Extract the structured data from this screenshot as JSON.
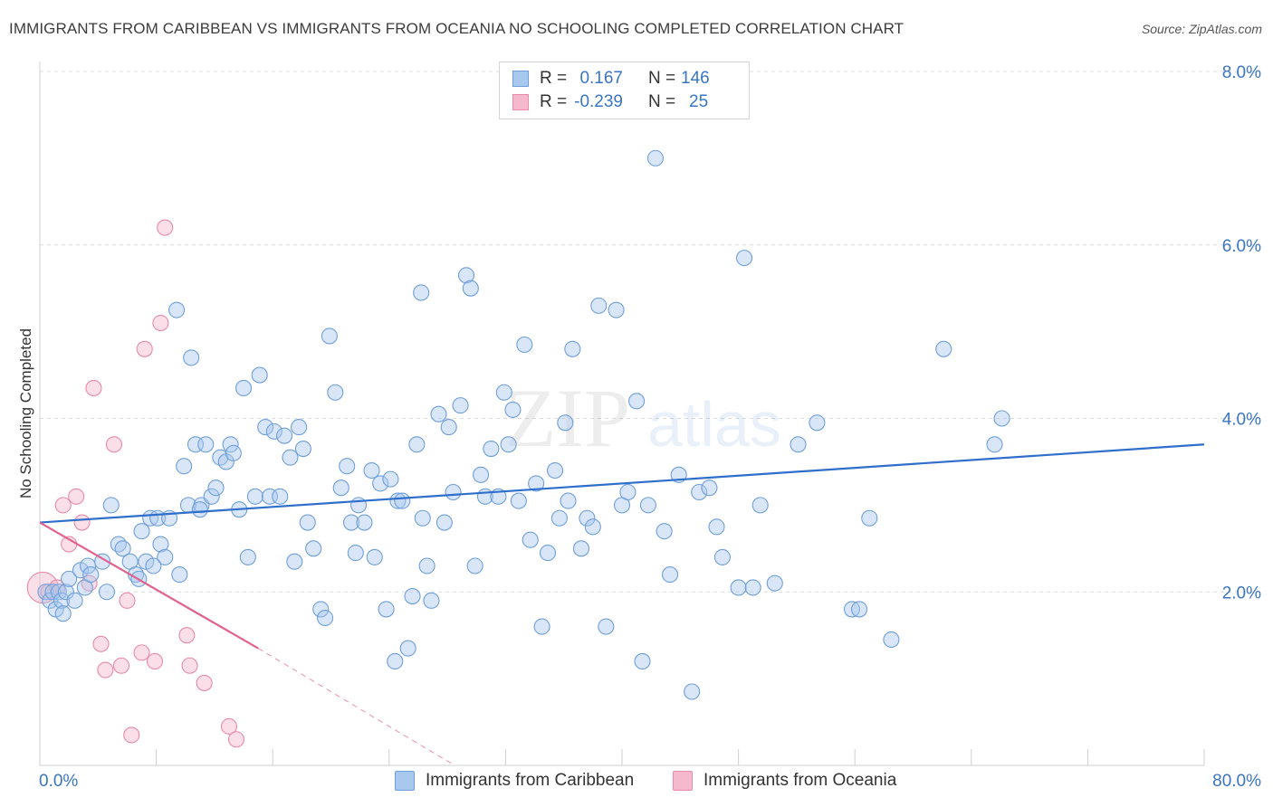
{
  "title": "IMMIGRANTS FROM CARIBBEAN VS IMMIGRANTS FROM OCEANIA NO SCHOOLING COMPLETED CORRELATION CHART",
  "source": "Source: ZipAtlas.com",
  "watermark": {
    "zip": "ZIP",
    "atlas": "atlas"
  },
  "legend": {
    "rows": [
      {
        "r_label": "R =",
        "r_value": "0.167",
        "n_label": "N =",
        "n_value": "146"
      },
      {
        "r_label": "R =",
        "r_value": "-0.239",
        "n_label": "N =",
        "n_value": "25"
      }
    ]
  },
  "bottom_legend": {
    "caribbean": "Immigrants from Caribbean",
    "oceania": "Immigrants from Oceania"
  },
  "colors": {
    "blue_fill": "#a9c8ee",
    "blue_stroke": "#6f9fdb",
    "blue_line": "#2f6fcb",
    "pink_fill": "#f5b8cc",
    "pink_stroke": "#e98aa8",
    "pink_line": "#e0638e",
    "tick_text": "#3a75c4",
    "grid": "#dcdcdc"
  },
  "chart_data": {
    "type": "scatter",
    "ylabel": "No Schooling Completed",
    "xlabel": "",
    "xlim": [
      0,
      80
    ],
    "ylim": [
      0,
      8
    ],
    "x_tick_labels": [
      "0.0%",
      "80.0%"
    ],
    "y_ticks": [
      2,
      4,
      6,
      8
    ],
    "y_tick_labels": [
      "2.0%",
      "4.0%",
      "6.0%",
      "8.0%"
    ],
    "grid": "horizontal dashed",
    "series": [
      {
        "name": "Immigrants from Caribbean",
        "color": "#a9c8ee",
        "trend": {
          "x": [
            0,
            80
          ],
          "y": [
            2.8,
            3.7
          ]
        },
        "points": [
          [
            0.4,
            2.0
          ],
          [
            0.7,
            1.9
          ],
          [
            0.9,
            2.0
          ],
          [
            1.1,
            1.8
          ],
          [
            1.3,
            2.0
          ],
          [
            1.5,
            1.9
          ],
          [
            1.6,
            1.75
          ],
          [
            1.8,
            2.0
          ],
          [
            2.0,
            2.15
          ],
          [
            2.4,
            1.9
          ],
          [
            2.8,
            2.25
          ],
          [
            3.1,
            2.05
          ],
          [
            3.3,
            2.3
          ],
          [
            3.5,
            2.2
          ],
          [
            4.3,
            2.35
          ],
          [
            4.6,
            2.0
          ],
          [
            4.9,
            3.0
          ],
          [
            5.4,
            2.55
          ],
          [
            5.7,
            2.5
          ],
          [
            6.2,
            2.35
          ],
          [
            6.6,
            2.2
          ],
          [
            6.8,
            2.15
          ],
          [
            7.0,
            2.7
          ],
          [
            7.3,
            2.35
          ],
          [
            7.6,
            2.85
          ],
          [
            8.1,
            2.85
          ],
          [
            8.3,
            2.55
          ],
          [
            8.6,
            2.4
          ],
          [
            8.9,
            2.85
          ],
          [
            9.4,
            5.25
          ],
          [
            9.6,
            2.2
          ],
          [
            9.9,
            3.45
          ],
          [
            10.2,
            3.0
          ],
          [
            10.4,
            4.7
          ],
          [
            10.7,
            3.7
          ],
          [
            11.1,
            3.0
          ],
          [
            11.4,
            3.7
          ],
          [
            11.8,
            3.1
          ],
          [
            12.1,
            3.2
          ],
          [
            12.4,
            3.55
          ],
          [
            12.8,
            3.5
          ],
          [
            13.1,
            3.7
          ],
          [
            13.3,
            3.6
          ],
          [
            13.7,
            2.95
          ],
          [
            14.0,
            4.35
          ],
          [
            14.3,
            2.4
          ],
          [
            14.8,
            3.1
          ],
          [
            15.1,
            4.5
          ],
          [
            15.5,
            3.9
          ],
          [
            15.8,
            3.1
          ],
          [
            16.1,
            3.85
          ],
          [
            16.5,
            3.1
          ],
          [
            16.8,
            3.8
          ],
          [
            17.2,
            3.55
          ],
          [
            17.5,
            2.35
          ],
          [
            17.8,
            3.9
          ],
          [
            18.1,
            3.65
          ],
          [
            18.4,
            2.8
          ],
          [
            18.8,
            2.5
          ],
          [
            19.3,
            1.8
          ],
          [
            19.6,
            1.7
          ],
          [
            19.9,
            4.95
          ],
          [
            20.3,
            4.3
          ],
          [
            20.7,
            3.2
          ],
          [
            21.1,
            3.45
          ],
          [
            21.4,
            2.8
          ],
          [
            21.7,
            2.45
          ],
          [
            21.9,
            3.0
          ],
          [
            22.3,
            2.8
          ],
          [
            22.8,
            3.4
          ],
          [
            23.0,
            2.4
          ],
          [
            23.4,
            3.25
          ],
          [
            23.8,
            1.8
          ],
          [
            24.1,
            3.3
          ],
          [
            24.4,
            1.2
          ],
          [
            24.6,
            3.05
          ],
          [
            24.9,
            3.05
          ],
          [
            25.3,
            1.35
          ],
          [
            25.6,
            1.95
          ],
          [
            25.9,
            3.7
          ],
          [
            26.2,
            5.45
          ],
          [
            26.6,
            2.3
          ],
          [
            26.9,
            1.9
          ],
          [
            27.4,
            4.05
          ],
          [
            27.8,
            2.8
          ],
          [
            28.1,
            3.9
          ],
          [
            28.4,
            3.15
          ],
          [
            28.9,
            4.15
          ],
          [
            29.3,
            5.65
          ],
          [
            29.6,
            5.5
          ],
          [
            29.9,
            2.3
          ],
          [
            30.3,
            3.35
          ],
          [
            30.6,
            3.1
          ],
          [
            31.0,
            3.65
          ],
          [
            31.5,
            3.1
          ],
          [
            31.9,
            4.3
          ],
          [
            32.2,
            3.7
          ],
          [
            32.5,
            4.1
          ],
          [
            32.9,
            3.05
          ],
          [
            33.3,
            4.85
          ],
          [
            33.7,
            2.6
          ],
          [
            34.1,
            3.25
          ],
          [
            34.5,
            1.6
          ],
          [
            34.9,
            2.45
          ],
          [
            35.4,
            3.4
          ],
          [
            35.7,
            2.85
          ],
          [
            36.1,
            3.95
          ],
          [
            36.6,
            4.8
          ],
          [
            37.2,
            2.5
          ],
          [
            37.6,
            2.85
          ],
          [
            38.0,
            2.75
          ],
          [
            38.4,
            5.3
          ],
          [
            38.9,
            1.6
          ],
          [
            39.6,
            5.25
          ],
          [
            40.0,
            3.0
          ],
          [
            40.4,
            3.15
          ],
          [
            41.0,
            4.2
          ],
          [
            41.4,
            1.2
          ],
          [
            41.8,
            3.0
          ],
          [
            42.3,
            7.0
          ],
          [
            42.9,
            2.7
          ],
          [
            43.3,
            2.2
          ],
          [
            43.9,
            3.35
          ],
          [
            44.8,
            0.85
          ],
          [
            45.3,
            3.15
          ],
          [
            46.0,
            3.2
          ],
          [
            46.5,
            2.75
          ],
          [
            46.9,
            2.4
          ],
          [
            48.0,
            2.05
          ],
          [
            48.4,
            5.85
          ],
          [
            49.0,
            2.05
          ],
          [
            49.5,
            3.0
          ],
          [
            50.5,
            2.1
          ],
          [
            52.1,
            3.7
          ],
          [
            53.4,
            3.95
          ],
          [
            55.8,
            1.8
          ],
          [
            56.3,
            1.8
          ],
          [
            57.0,
            2.85
          ],
          [
            58.5,
            1.45
          ],
          [
            62.1,
            4.8
          ],
          [
            65.6,
            3.7
          ],
          [
            66.1,
            4.0
          ],
          [
            26.3,
            2.85
          ],
          [
            36.3,
            3.05
          ],
          [
            11.0,
            2.95
          ],
          [
            7.8,
            2.3
          ]
        ]
      },
      {
        "name": "Immigrants from Oceania",
        "color": "#f5b8cc",
        "trend": {
          "x": [
            0,
            15
          ],
          "y": [
            2.8,
            1.35
          ]
        },
        "trend_dashed": {
          "x": [
            15,
            28.5
          ],
          "y": [
            1.35,
            0.0
          ]
        },
        "points": [
          [
            0.2,
            2.05
          ],
          [
            0.6,
            2.0
          ],
          [
            1.2,
            2.05
          ],
          [
            1.6,
            3.0
          ],
          [
            2.0,
            2.55
          ],
          [
            2.5,
            3.1
          ],
          [
            2.9,
            2.8
          ],
          [
            3.4,
            2.1
          ],
          [
            3.7,
            4.35
          ],
          [
            4.2,
            1.4
          ],
          [
            4.5,
            1.1
          ],
          [
            5.1,
            3.7
          ],
          [
            5.6,
            1.15
          ],
          [
            6.0,
            1.9
          ],
          [
            6.3,
            0.35
          ],
          [
            7.0,
            1.3
          ],
          [
            7.2,
            4.8
          ],
          [
            7.9,
            1.2
          ],
          [
            8.3,
            5.1
          ],
          [
            8.6,
            6.2
          ],
          [
            10.1,
            1.5
          ],
          [
            10.3,
            1.15
          ],
          [
            11.3,
            0.95
          ],
          [
            13.0,
            0.45
          ],
          [
            13.5,
            0.3
          ]
        ]
      }
    ]
  }
}
